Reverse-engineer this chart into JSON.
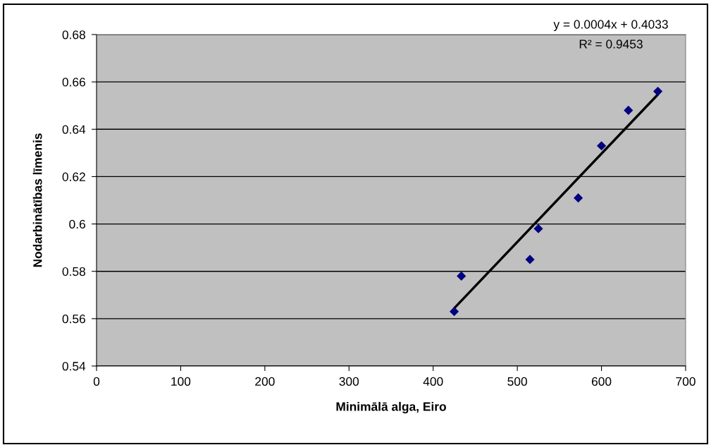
{
  "chart_data": {
    "type": "scatter",
    "xlabel": "Minimālā alga, Eiro",
    "ylabel": "Nodarbinātības līmenis",
    "series": [
      {
        "color": "#000080",
        "marker": "diamond",
        "x": [
          425,
          433.5,
          515,
          525,
          572.4,
          600,
          632,
          667
        ],
        "values": [
          0.563,
          0.578,
          0.585,
          0.598,
          0.611,
          0.633,
          0.648,
          0.656
        ]
      },
      {
        "type": "line",
        "color": "#000000",
        "line_style": "solid",
        "x": [
          425,
          667
        ],
        "values": [
          0.5644,
          0.6547
        ]
      }
    ],
    "annotations": [
      "y = 0.0004x + 0.4033",
      "R² = 0.9453"
    ],
    "xlim": [
      0,
      700
    ],
    "xticks": [
      0,
      100,
      200,
      300,
      400,
      500,
      600,
      700
    ],
    "ylim": [
      0.54,
      0.68
    ],
    "yticks": [
      0.54,
      0.56,
      0.58,
      0.6,
      0.62,
      0.64,
      0.66,
      0.68
    ],
    "grid": "y",
    "legend": false
  }
}
